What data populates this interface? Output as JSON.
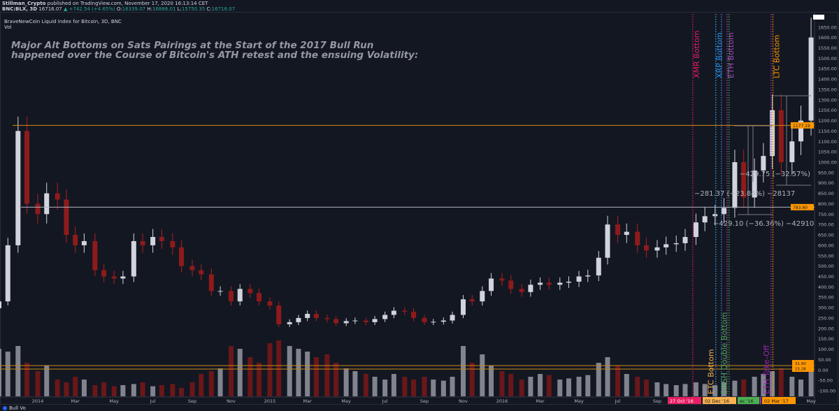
{
  "header": {
    "publisher": "Stillman_Crypto",
    "published_text": "published on TradingView.com, November 17, 2020 16:13:14 CET",
    "symbol": "BNC:BLX, 3D",
    "last": "16716.07",
    "change": "▲ +742.54 (+4.65%)",
    "o_label": "O:",
    "o": "16339.07",
    "h_label": "H:",
    "h": "16886.01",
    "l_label": "L:",
    "l": "15750.35",
    "c_label": "C:",
    "c": "16716.07"
  },
  "legend": {
    "series": "BraveNewCoin Liquid Index for Bitcoin, 3D, BNC",
    "volume": "Vol"
  },
  "annotation_title": [
    "Major Alt Bottoms on Sats Pairings at the Start of the 2017 Bull Run",
    "happened over the Course of Bitcoin's ATH retest and the ensuing Volatility:"
  ],
  "footer": {
    "label": "Bull Vo"
  },
  "colors": {
    "background": "#131722",
    "up": "#d1d4dc",
    "down": "#8e1b1b",
    "axis_text": "#b2b5be",
    "level": "#ff9800"
  },
  "chart_data": {
    "type": "candlestick",
    "ylim": [
      -100,
      1700
    ],
    "y_ticks": [
      "1650.00",
      "1600.00",
      "1550.00",
      "1500.00",
      "1450.00",
      "1400.00",
      "1350.00",
      "1300.00",
      "1250.00",
      "1200.00",
      "1150.00",
      "1100.00",
      "1050.00",
      "1000.00",
      "950.00",
      "900.00",
      "850.00",
      "800.00",
      "750.00",
      "700.00",
      "650.00",
      "600.00",
      "550.00",
      "500.00",
      "450.00",
      "400.00",
      "350.00",
      "300.00",
      "250.00",
      "200.00",
      "150.00",
      "100.00",
      "50.00",
      "0.00",
      "-50.00",
      "-100.00"
    ],
    "x_ticks": [
      {
        "label": "2014",
        "date": "2014-01-01"
      },
      {
        "label": "Mar",
        "date": "2014-03-01"
      },
      {
        "label": "May",
        "date": "2014-05-01"
      },
      {
        "label": "Jul",
        "date": "2014-07-01"
      },
      {
        "label": "Sep",
        "date": "2014-09-01"
      },
      {
        "label": "Nov",
        "date": "2014-11-01"
      },
      {
        "label": "2015",
        "date": "2015-01-01"
      },
      {
        "label": "Mar",
        "date": "2015-03-01"
      },
      {
        "label": "May",
        "date": "2015-05-01"
      },
      {
        "label": "Jul",
        "date": "2015-07-01"
      },
      {
        "label": "Sep",
        "date": "2015-09-01"
      },
      {
        "label": "Nov",
        "date": "2015-11-01"
      },
      {
        "label": "2016",
        "date": "2016-01-01"
      },
      {
        "label": "Mar",
        "date": "2016-03-01"
      },
      {
        "label": "May",
        "date": "2016-05-01"
      },
      {
        "label": "Jul",
        "date": "2016-07-01"
      },
      {
        "label": "Sep",
        "date": "2016-09-01"
      },
      {
        "label": "May",
        "date": "2017-05-01"
      }
    ],
    "dates": [
      "2013-11-01",
      "2013-11-15",
      "2013-12-01",
      "2013-12-15",
      "2014-01-01",
      "2014-01-15",
      "2014-02-01",
      "2014-02-15",
      "2014-03-01",
      "2014-03-15",
      "2014-04-01",
      "2014-04-15",
      "2014-05-01",
      "2014-05-15",
      "2014-06-01",
      "2014-06-15",
      "2014-07-01",
      "2014-07-15",
      "2014-08-01",
      "2014-08-15",
      "2014-09-01",
      "2014-09-15",
      "2014-10-01",
      "2014-10-15",
      "2014-11-01",
      "2014-11-15",
      "2014-12-01",
      "2014-12-15",
      "2015-01-01",
      "2015-01-15",
      "2015-02-01",
      "2015-02-15",
      "2015-03-01",
      "2015-03-15",
      "2015-04-01",
      "2015-04-15",
      "2015-05-01",
      "2015-05-15",
      "2015-06-01",
      "2015-06-15",
      "2015-07-01",
      "2015-07-15",
      "2015-08-01",
      "2015-08-15",
      "2015-09-01",
      "2015-09-15",
      "2015-10-01",
      "2015-10-15",
      "2015-11-01",
      "2015-11-15",
      "2015-12-01",
      "2015-12-15",
      "2016-01-01",
      "2016-01-15",
      "2016-02-01",
      "2016-02-15",
      "2016-03-01",
      "2016-03-15",
      "2016-04-01",
      "2016-04-15",
      "2016-05-01",
      "2016-05-15",
      "2016-06-01",
      "2016-06-15",
      "2016-07-01",
      "2016-07-15",
      "2016-08-01",
      "2016-08-15",
      "2016-09-01",
      "2016-09-15",
      "2016-10-01",
      "2016-10-15",
      "2016-11-01",
      "2016-11-15",
      "2016-12-01",
      "2016-12-15",
      "2017-01-01",
      "2017-01-15",
      "2017-02-01",
      "2017-02-15",
      "2017-03-01",
      "2017-03-15",
      "2017-04-01",
      "2017-04-15",
      "2017-05-01"
    ],
    "close": [
      330,
      600,
      1150,
      800,
      750,
      850,
      820,
      650,
      600,
      620,
      480,
      450,
      440,
      450,
      620,
      600,
      640,
      620,
      590,
      500,
      480,
      460,
      380,
      380,
      330,
      390,
      370,
      330,
      310,
      220,
      230,
      250,
      270,
      250,
      245,
      225,
      235,
      238,
      230,
      245,
      265,
      285,
      280,
      250,
      230,
      232,
      238,
      265,
      340,
      330,
      380,
      440,
      430,
      390,
      375,
      410,
      420,
      410,
      420,
      425,
      450,
      455,
      540,
      700,
      650,
      665,
      600,
      575,
      590,
      605,
      610,
      640,
      710,
      740,
      750,
      780,
      1000,
      830,
      960,
      1030,
      1250,
      1000,
      1100,
      1200,
      1600
    ],
    "volume": [
      85,
      80,
      90,
      60,
      45,
      55,
      30,
      25,
      35,
      30,
      20,
      25,
      18,
      20,
      22,
      25,
      18,
      20,
      22,
      15,
      25,
      40,
      45,
      50,
      90,
      85,
      70,
      60,
      95,
      100,
      90,
      85,
      80,
      70,
      75,
      60,
      50,
      45,
      40,
      35,
      30,
      40,
      35,
      30,
      35,
      30,
      28,
      35,
      90,
      60,
      75,
      55,
      45,
      40,
      30,
      35,
      40,
      38,
      30,
      32,
      35,
      38,
      60,
      70,
      55,
      40,
      35,
      30,
      25,
      22,
      20,
      22,
      25,
      22,
      20,
      25,
      28,
      30,
      35,
      40,
      45,
      50,
      35,
      30,
      45
    ],
    "levels": [
      {
        "value": 1177.19,
        "label": "1177.19",
        "color": "#ff9800"
      },
      {
        "value": 783.6,
        "label": "783.60",
        "color": "#d1d4dc"
      }
    ],
    "volume_levels": [
      {
        "label": "31.90"
      },
      {
        "label": "15.28"
      }
    ],
    "events": [
      {
        "date": "2016-10-27",
        "label": "XMR Bottom",
        "color": "#e91e63",
        "pos": "top",
        "badge": "27 Oct '16"
      },
      {
        "date": "2016-12-02",
        "label": "ETC Bottom",
        "color": "#f7b24f",
        "pos": "bottom",
        "badge": "02 Dec '16"
      },
      {
        "date": "2016-12-02",
        "label": "XRP Bottom",
        "color": "#2196f3",
        "pos": "top",
        "offset": 0
      },
      {
        "date": "2016-12-11",
        "label": "",
        "color": "#5c8ae6",
        "pos": "none"
      },
      {
        "date": "2016-12-20",
        "label": "ETH Bottom",
        "color": "#ab47bc",
        "pos": "top"
      },
      {
        "date": "2016-12-23",
        "label": "DASH Double Bottom",
        "color": "#4caf50",
        "pos": "bottom",
        "badge": "ec '16"
      },
      {
        "date": "2017-02-27",
        "label": "ETH Take-Off",
        "color": "#9c27b0",
        "pos": "bottom"
      },
      {
        "date": "2017-03-02",
        "label": "LTC Bottom",
        "color": "#ff9800",
        "pos": "top",
        "badge": "02 Mar '17"
      }
    ],
    "measurements": [
      {
        "text": "−281.37 (−23.84%) −28137"
      },
      {
        "text": "−429.10 (−36.36%) −42910"
      },
      {
        "text": "−429.75 (−32.57%)"
      }
    ]
  }
}
